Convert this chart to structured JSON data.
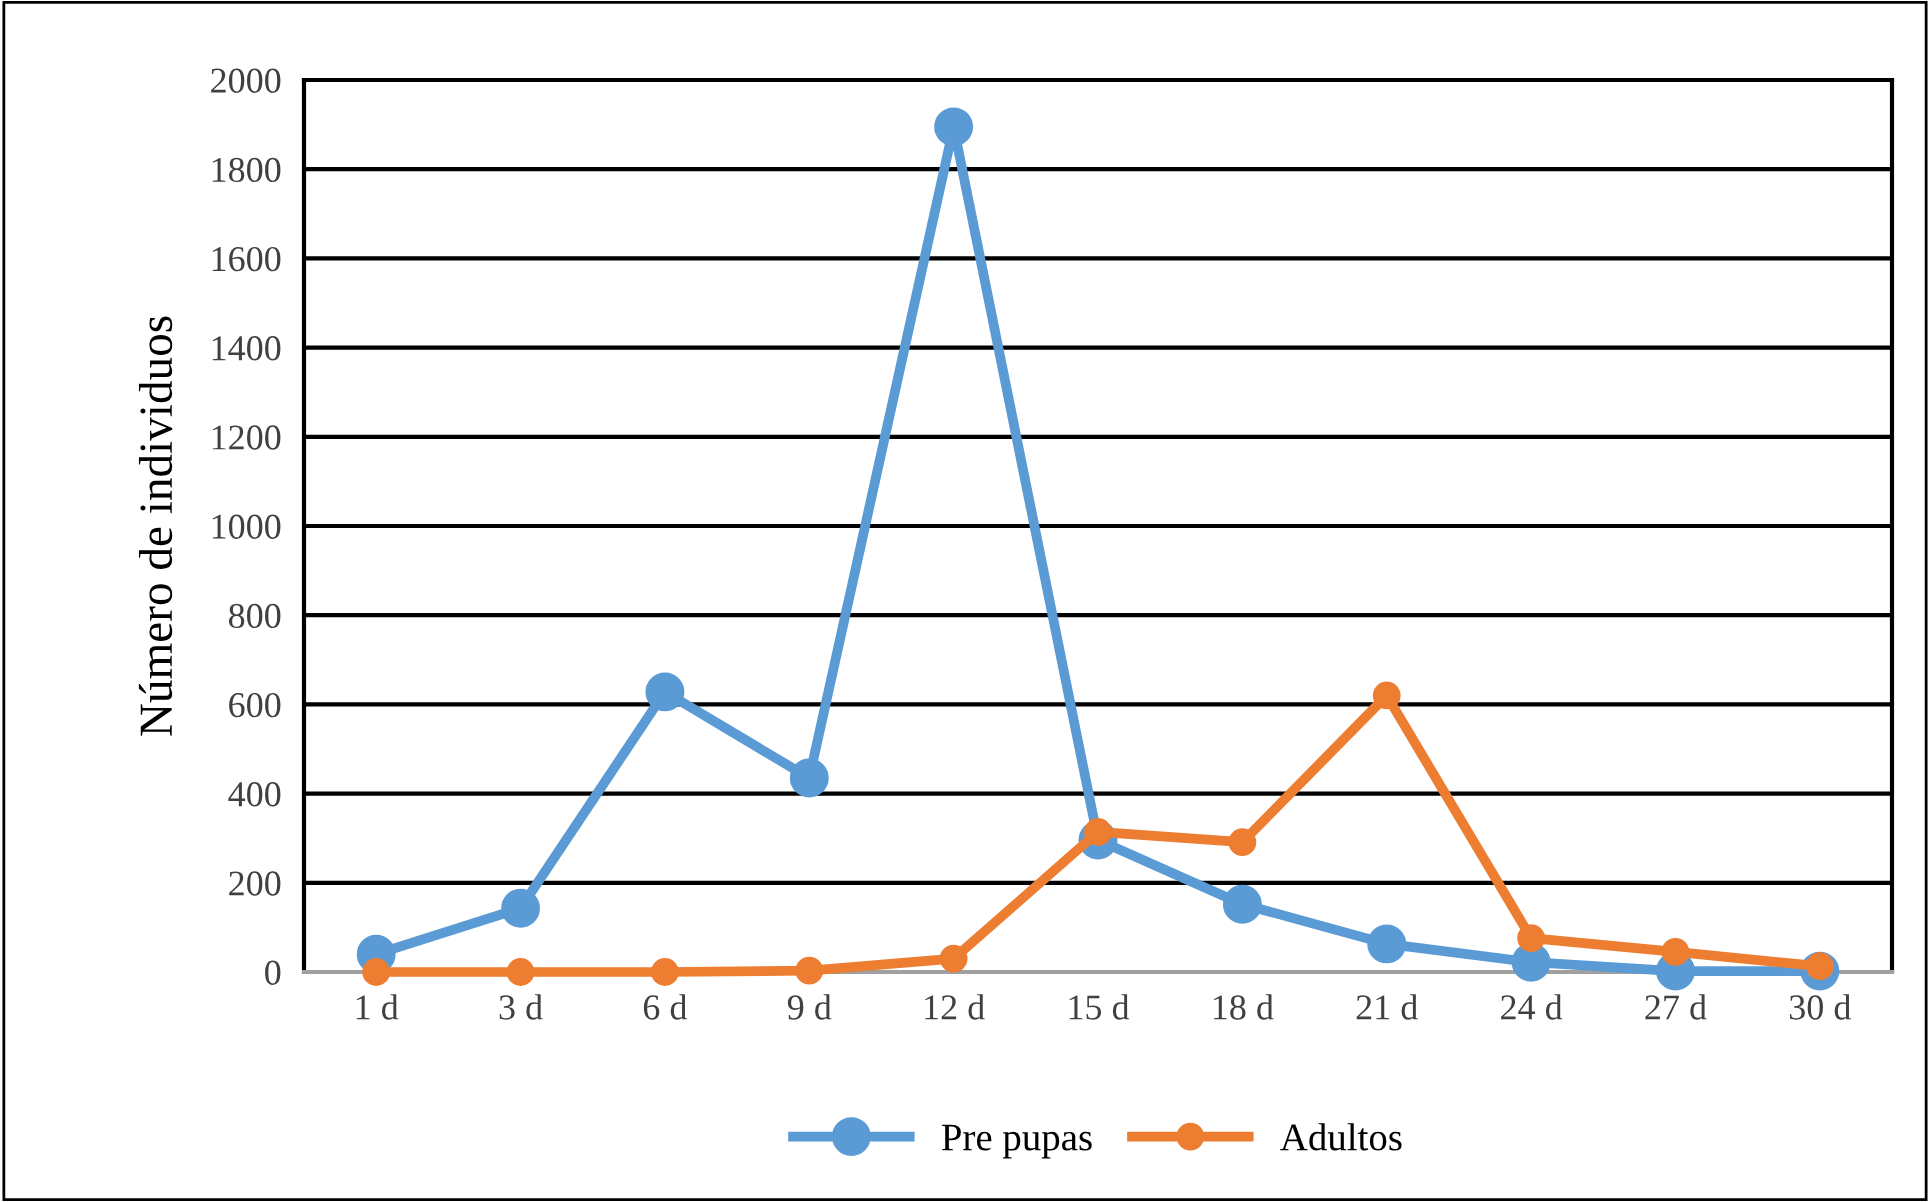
{
  "chart_data": {
    "type": "line",
    "ylabel": "Número de individuos",
    "categories": [
      "1 d",
      "3 d",
      "6 d",
      "9 d",
      "12 d",
      "15 d",
      "18 d",
      "21 d",
      "24 d",
      "27 d",
      "30 d"
    ],
    "series": [
      {
        "name": "Pre pupas",
        "color": "#5b9bd5",
        "values": [
          40,
          143,
          628,
          435,
          1895,
          296,
          152,
          63,
          22,
          2,
          2
        ]
      },
      {
        "name": "Adultos",
        "color": "#ed7d31",
        "values": [
          0,
          0,
          0,
          3,
          30,
          314,
          291,
          620,
          76,
          45,
          13
        ]
      }
    ],
    "ylim": [
      0,
      2000
    ],
    "yticks": [
      0,
      200,
      400,
      600,
      800,
      1000,
      1200,
      1400,
      1600,
      1800,
      2000
    ],
    "grid": "y",
    "legend": "bottom",
    "marker": "circle",
    "line_style": "solid"
  }
}
